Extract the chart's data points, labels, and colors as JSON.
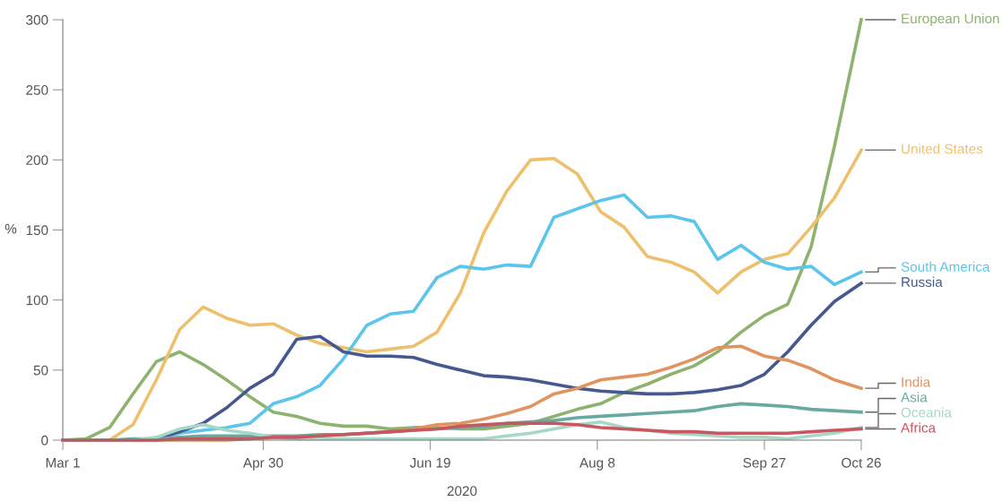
{
  "chart_data": {
    "type": "line",
    "xlabel": "2020",
    "ylabel": "%",
    "x": [
      "2020-03-01",
      "2020-03-08",
      "2020-03-15",
      "2020-03-22",
      "2020-03-29",
      "2020-04-05",
      "2020-04-12",
      "2020-04-19",
      "2020-04-26",
      "2020-05-03",
      "2020-05-10",
      "2020-05-17",
      "2020-05-24",
      "2020-05-31",
      "2020-06-07",
      "2020-06-14",
      "2020-06-21",
      "2020-06-28",
      "2020-07-05",
      "2020-07-12",
      "2020-07-19",
      "2020-07-26",
      "2020-08-02",
      "2020-08-09",
      "2020-08-16",
      "2020-08-23",
      "2020-08-30",
      "2020-09-06",
      "2020-09-13",
      "2020-09-20",
      "2020-09-27",
      "2020-10-04",
      "2020-10-11",
      "2020-10-18",
      "2020-10-26"
    ],
    "series": [
      {
        "name": "European Union",
        "color": "#8db36e",
        "values": [
          0,
          1,
          9,
          33,
          56,
          63,
          54,
          43,
          31,
          20,
          17,
          12,
          10,
          10,
          8,
          9,
          9,
          8,
          8,
          10,
          12,
          17,
          22,
          26,
          34,
          40,
          47,
          53,
          63,
          77,
          89,
          97,
          138,
          210,
          300
        ]
      },
      {
        "name": "United States",
        "color": "#eec06e",
        "values": [
          0,
          0,
          0,
          11,
          43,
          79,
          95,
          87,
          82,
          83,
          75,
          69,
          66,
          63,
          65,
          67,
          77,
          105,
          148,
          178,
          200,
          201,
          190,
          163,
          152,
          131,
          127,
          120,
          105,
          120,
          129,
          133,
          152,
          173,
          207
        ]
      },
      {
        "name": "South America",
        "color": "#5bc5ec",
        "values": [
          null,
          null,
          null,
          null,
          1,
          5,
          7,
          9,
          12,
          26,
          31,
          39,
          58,
          82,
          90,
          92,
          116,
          124,
          122,
          125,
          124,
          159,
          165,
          171,
          175,
          159,
          160,
          156,
          129,
          139,
          127,
          122,
          124,
          111,
          120
        ]
      },
      {
        "name": "Russia",
        "color": "#45598f",
        "values": [
          0,
          0,
          0,
          0,
          1,
          6,
          12,
          23,
          37,
          47,
          72,
          74,
          63,
          60,
          60,
          59,
          54,
          50,
          46,
          45,
          43,
          40,
          37,
          35,
          34,
          33,
          33,
          34,
          36,
          39,
          47,
          63,
          82,
          99,
          112
        ]
      },
      {
        "name": "India",
        "color": "#e0945f",
        "values": [
          0,
          0,
          0,
          0,
          0,
          0,
          0,
          0,
          1,
          2,
          2,
          3,
          4,
          5,
          6,
          8,
          11,
          12,
          15,
          19,
          24,
          33,
          37,
          43,
          45,
          47,
          52,
          58,
          66,
          67,
          60,
          57,
          51,
          43,
          37
        ]
      },
      {
        "name": "Asia",
        "color": "#6aa9a0",
        "values": [
          0,
          0,
          0,
          1,
          1,
          2,
          3,
          3,
          3,
          3,
          3,
          4,
          4,
          5,
          6,
          7,
          8,
          9,
          10,
          12,
          13,
          14,
          16,
          17,
          18,
          19,
          20,
          21,
          24,
          26,
          25,
          24,
          22,
          21,
          20
        ]
      },
      {
        "name": "Oceania",
        "color": "#a6d8c8",
        "values": [
          0,
          0,
          0,
          0,
          2,
          8,
          11,
          7,
          5,
          2,
          1,
          1,
          1,
          1,
          1,
          1,
          1,
          1,
          1,
          3,
          5,
          8,
          11,
          13,
          9,
          7,
          5,
          4,
          3,
          2,
          2,
          1,
          3,
          5,
          9
        ]
      },
      {
        "name": "Africa",
        "color": "#c9575f",
        "values": [
          0,
          0,
          0,
          0,
          0,
          1,
          1,
          1,
          1,
          2,
          2,
          3,
          4,
          5,
          6,
          7,
          8,
          10,
          11,
          12,
          12,
          12,
          11,
          9,
          8,
          7,
          6,
          6,
          5,
          5,
          5,
          5,
          6,
          7,
          8
        ]
      }
    ],
    "xlim": [
      "2020-03-01",
      "2020-10-26"
    ],
    "xticks": [
      {
        "value": "2020-03-01",
        "label": "Mar 1"
      },
      {
        "value": "2020-04-30",
        "label": "Apr 30"
      },
      {
        "value": "2020-06-19",
        "label": "Jun 19"
      },
      {
        "value": "2020-08-08",
        "label": "Aug 8"
      },
      {
        "value": "2020-09-27",
        "label": "Sep 27"
      },
      {
        "value": "2020-10-26",
        "label": "Oct 26"
      }
    ],
    "ylim": [
      0,
      300
    ],
    "yticks": [
      0,
      50,
      100,
      150,
      200,
      250,
      300
    ],
    "grid": false,
    "legend": false,
    "marker": "none",
    "line_style": "solid"
  }
}
